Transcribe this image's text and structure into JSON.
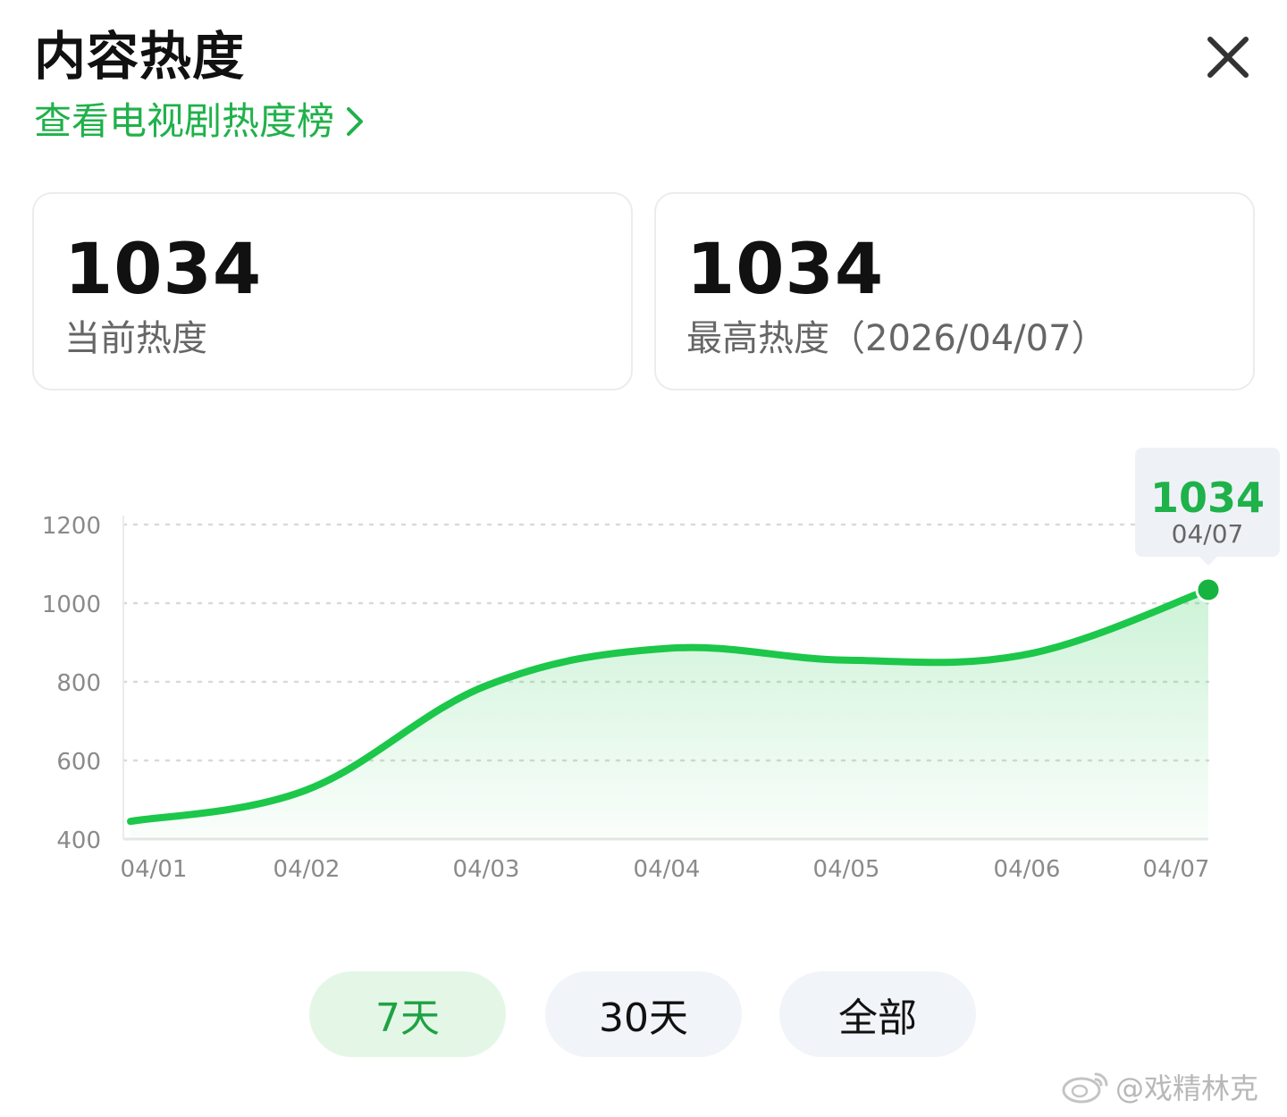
{
  "header": {
    "title": "内容热度",
    "rank_link": "查看电视剧热度榜"
  },
  "stats": {
    "current_value": "1034",
    "current_label": "当前热度",
    "peak_value": "1034",
    "peak_label": "最高热度（2026/04/07）"
  },
  "chart_data": {
    "type": "area",
    "categories": [
      "04/01",
      "04/02",
      "04/03",
      "04/04",
      "04/05",
      "04/06",
      "04/07"
    ],
    "values": [
      445,
      525,
      790,
      885,
      855,
      870,
      1034
    ],
    "y_ticks": [
      1200,
      1000,
      800,
      600,
      400
    ],
    "ylim": [
      400,
      1200
    ],
    "grid": true,
    "color": "#1cc74a",
    "highlight": {
      "value": "1034",
      "date": "04/07"
    }
  },
  "range_buttons": {
    "days7": "7天",
    "days30": "30天",
    "all": "全部",
    "active": "7天"
  },
  "watermark": "@戏精林克"
}
